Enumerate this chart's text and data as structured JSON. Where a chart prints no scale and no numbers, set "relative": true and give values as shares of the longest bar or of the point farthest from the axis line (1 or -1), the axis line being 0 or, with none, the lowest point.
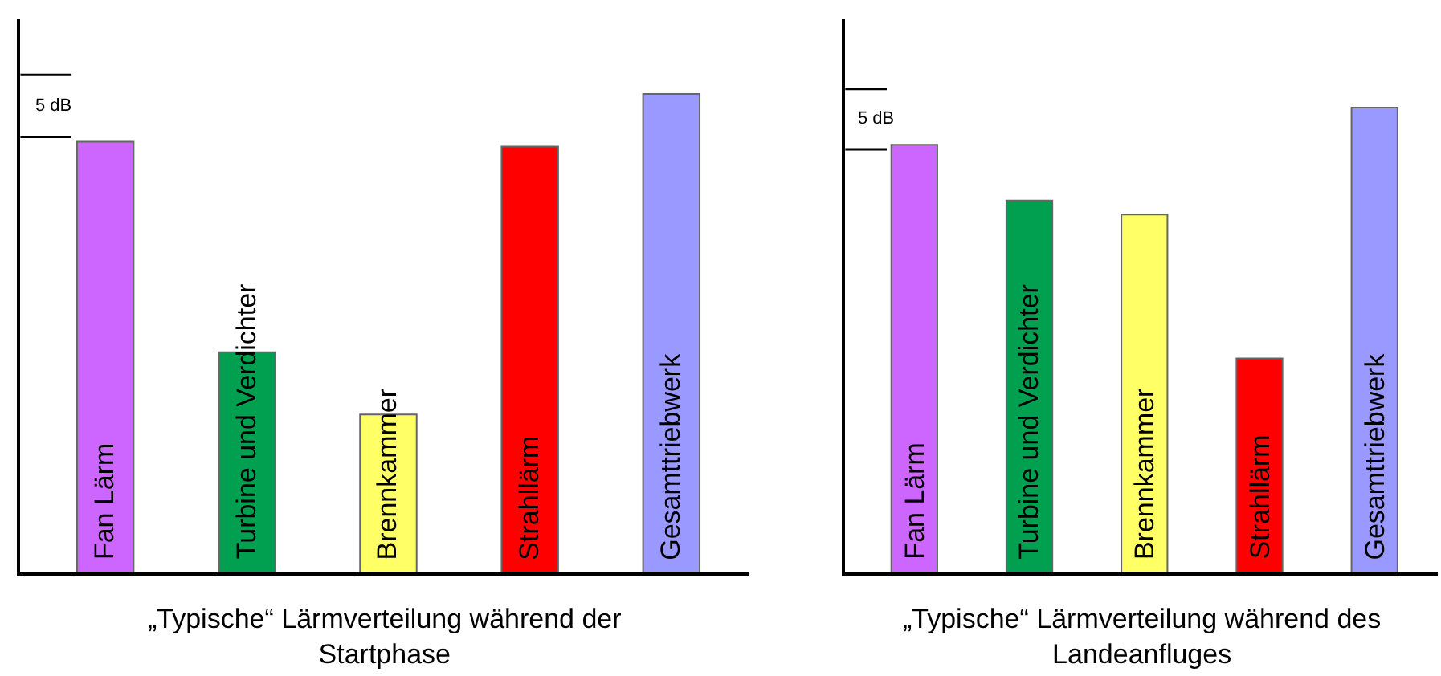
{
  "chart_data": [
    {
      "type": "bar",
      "relative": true,
      "title": "„Typische“ Lärmverteilung während der\nStartphase",
      "categories": [
        "Fan Lärm",
        "Turbine und Verdichter",
        "Brennkammer",
        "Strahllärm",
        "Gesamttriebwerk"
      ],
      "values": [
        0.9,
        0.46,
        0.33,
        0.89,
        1
      ],
      "colors": [
        "#cc66ff",
        "#00a050",
        "#ffff66",
        "#ff0000",
        "#9999ff"
      ],
      "annotations": [
        "5 dB"
      ]
    },
    {
      "type": "bar",
      "relative": true,
      "title": "„Typische“ Lärmverteilung während des\nLandeanfluges",
      "categories": [
        "Fan Lärm",
        "Turbine und Verdichter",
        "Brennkammer",
        "Strahllärm",
        "Gesamttriebwerk"
      ],
      "values": [
        0.92,
        0.8,
        0.77,
        0.46,
        1
      ],
      "colors": [
        "#cc66ff",
        "#00a050",
        "#ffff66",
        "#ff0000",
        "#9999ff"
      ],
      "annotations": [
        "5 dB"
      ]
    }
  ]
}
